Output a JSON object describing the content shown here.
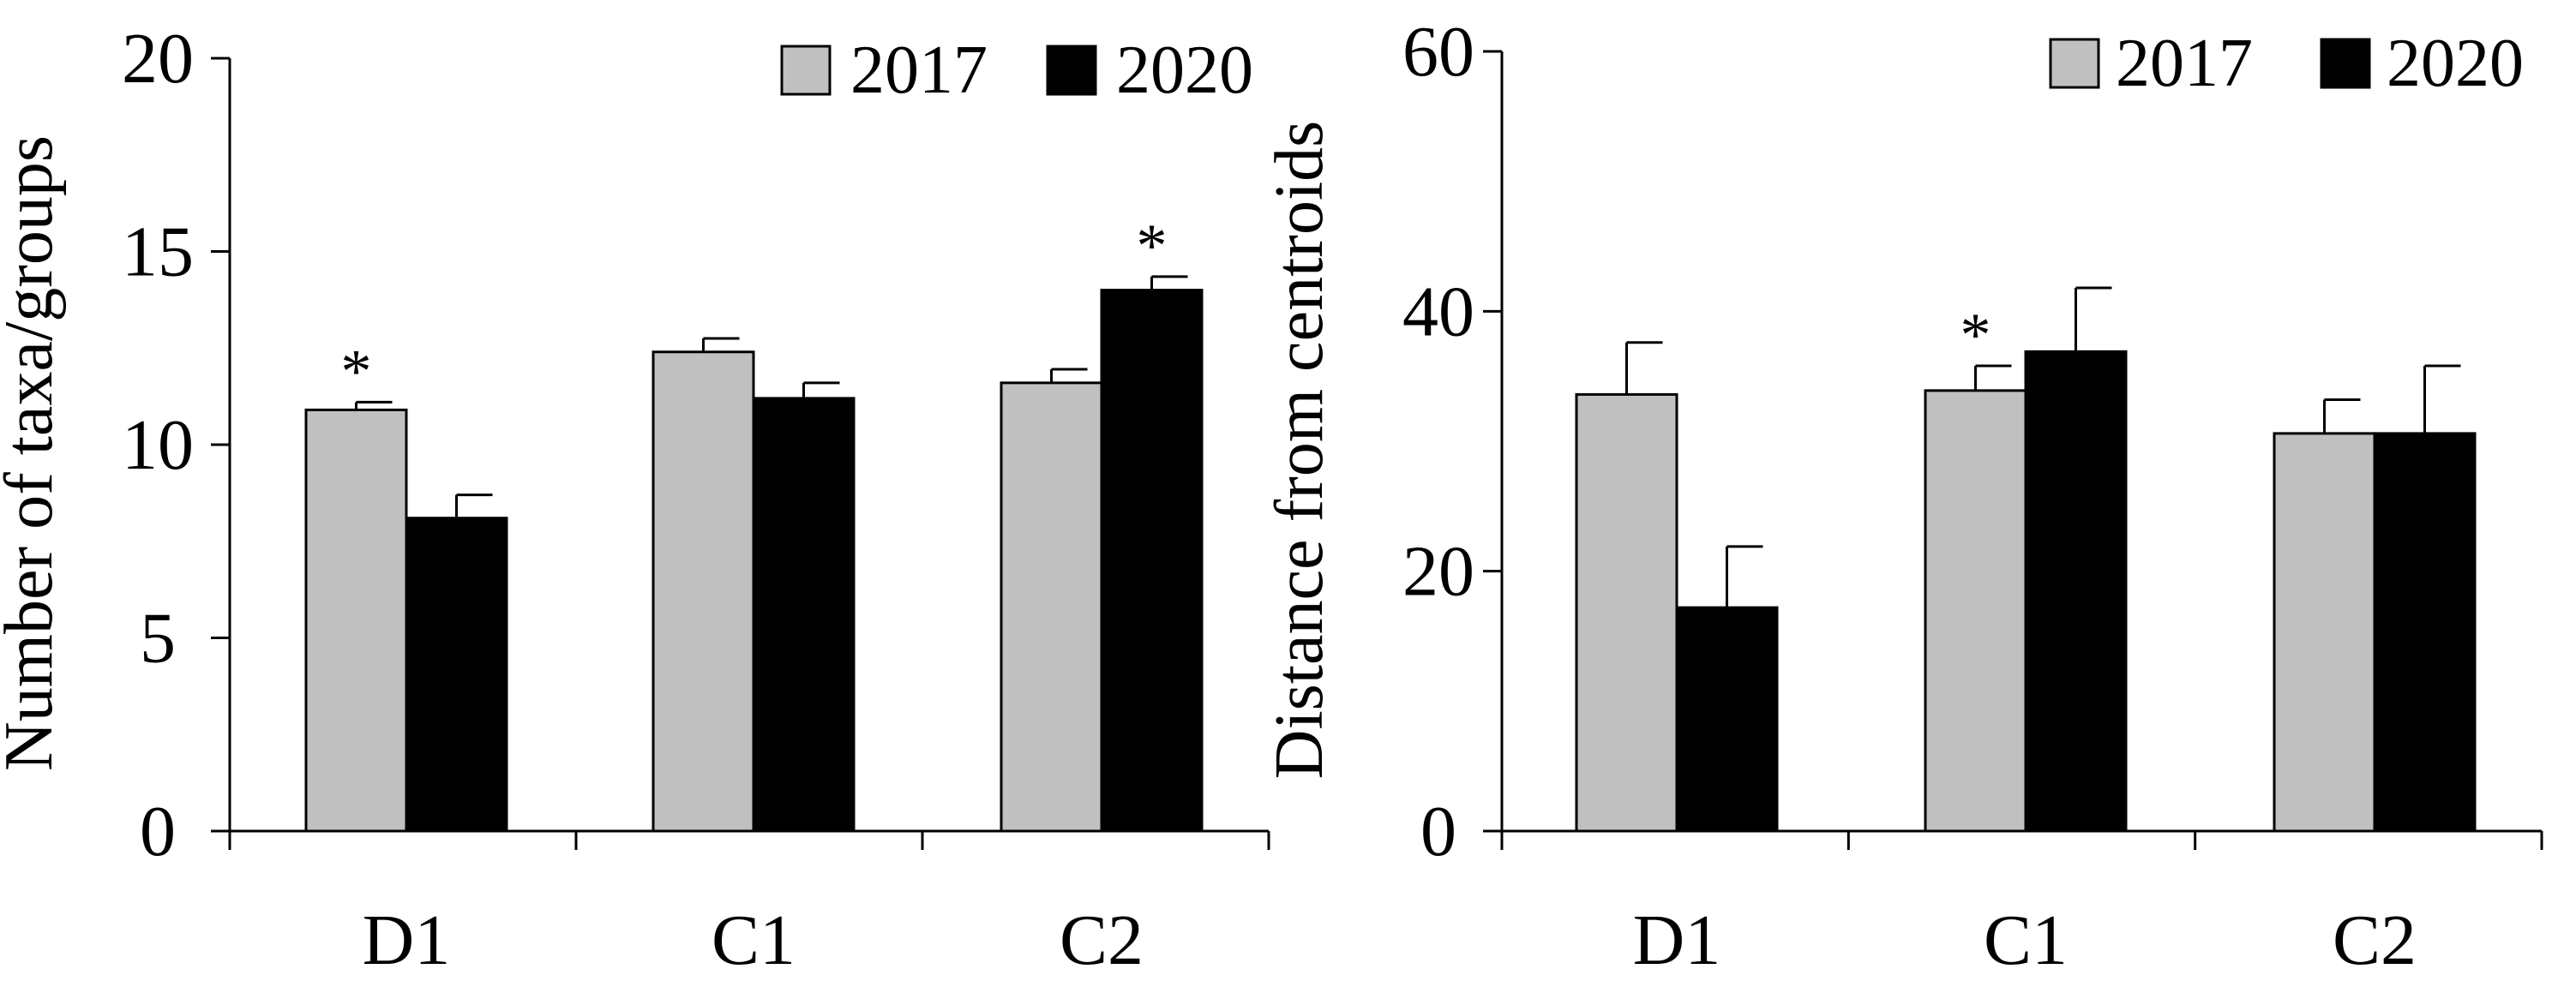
{
  "chart_data": [
    {
      "type": "bar",
      "categories": [
        "D1",
        "C1",
        "C2"
      ],
      "ylabel": "Number of taxa/groups",
      "ylim": [
        0,
        20
      ],
      "yticks": [
        0,
        5,
        10,
        15,
        20
      ],
      "series": [
        {
          "name": "2017",
          "color": "#c0c0c0",
          "values": [
            10.9,
            12.4,
            11.6
          ],
          "errors": [
            0.2,
            0.35,
            0.35
          ]
        },
        {
          "name": "2020",
          "color": "#000000",
          "values": [
            8.1,
            11.2,
            14.0
          ],
          "errors": [
            0.6,
            0.4,
            0.35
          ]
        }
      ],
      "annotations": [
        {
          "text": "*",
          "category": 0,
          "series": 0
        },
        {
          "text": "*",
          "category": 2,
          "series": 1
        }
      ],
      "legend": "top-right"
    },
    {
      "type": "bar",
      "categories": [
        "D1",
        "C1",
        "C2"
      ],
      "ylabel": "Distance from centroids",
      "ylim": [
        0,
        60
      ],
      "yticks": [
        0,
        20,
        40,
        60
      ],
      "series": [
        {
          "name": "2017",
          "color": "#c0c0c0",
          "values": [
            33.6,
            33.9,
            30.6
          ],
          "errors": [
            4.0,
            1.9,
            2.6
          ]
        },
        {
          "name": "2020",
          "color": "#000000",
          "values": [
            17.2,
            36.9,
            30.6
          ],
          "errors": [
            4.7,
            4.9,
            5.2
          ]
        }
      ],
      "annotations": [
        {
          "text": "*",
          "category": 1,
          "series": 0
        }
      ],
      "legend": "top-right"
    }
  ]
}
